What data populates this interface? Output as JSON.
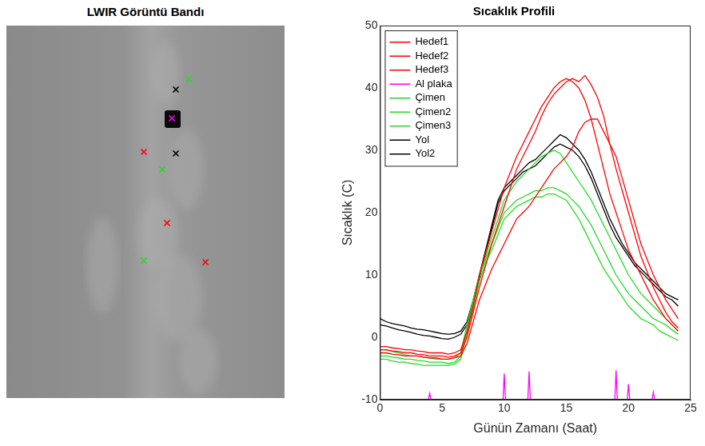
{
  "image_panel": {
    "title": "LWIR Görüntü Bandı"
  },
  "chart_data": {
    "type": "line",
    "title": "Sıcaklık Profili",
    "x_label": "Günün Zamanı (Saat)",
    "y_label": "Sıcaklık (C)",
    "xlim": [
      0,
      25
    ],
    "xticks": [
      0,
      5,
      10,
      15,
      20,
      25
    ],
    "ylim": [
      -10,
      50
    ],
    "yticks": [
      -10,
      0,
      10,
      20,
      30,
      40,
      50
    ],
    "grid": false,
    "legend": "upper left",
    "x": [
      0,
      0.5,
      1,
      1.5,
      2,
      2.5,
      3,
      3.5,
      4,
      4.5,
      5,
      5.5,
      6,
      6.5,
      7,
      7.5,
      8,
      8.5,
      9,
      9.5,
      10,
      10.5,
      11,
      11.5,
      12,
      12.5,
      13,
      13.5,
      14,
      14.5,
      15,
      15.5,
      16,
      16.5,
      17,
      17.5,
      18,
      18.5,
      19,
      19.5,
      20,
      20.5,
      21,
      21.5,
      22,
      22.5,
      23,
      23.5,
      24
    ],
    "series": [
      {
        "name": "Hedef1",
        "color": "#ff0000",
        "values": [
          -2,
          -2,
          -2.2,
          -2.3,
          -2.5,
          -2.5,
          -2.7,
          -2.8,
          -3,
          -3,
          -3,
          -3.2,
          -3,
          -2.5,
          0,
          4,
          8,
          11.5,
          15,
          18,
          21,
          24,
          27,
          29,
          31,
          33,
          35.5,
          37.5,
          39,
          40,
          41,
          41.5,
          41,
          42,
          40.5,
          38.5,
          35.5,
          31,
          27,
          23.5,
          20,
          16.5,
          13,
          10.5,
          8,
          6,
          4,
          2.5,
          1.5
        ]
      },
      {
        "name": "Hedef2",
        "color": "#ff0000",
        "values": [
          -1.5,
          -1.5,
          -1.7,
          -1.8,
          -2,
          -2,
          -2.2,
          -2.3,
          -2.5,
          -2.5,
          -2.5,
          -2.7,
          -2.5,
          -2,
          1,
          5,
          10,
          13.5,
          17,
          20.5,
          24,
          26.5,
          29,
          31,
          33,
          35,
          37,
          38.5,
          40,
          41,
          41.5,
          41,
          40,
          38,
          35,
          31,
          27,
          23,
          20,
          17,
          14,
          12,
          10,
          8,
          6,
          4.5,
          3,
          2,
          1
        ]
      },
      {
        "name": "Hedef3",
        "color": "#ff0000",
        "values": [
          -2.5,
          -2.5,
          -2.7,
          -2.8,
          -3,
          -3,
          -3,
          -3.2,
          -3.3,
          -3.3,
          -3.5,
          -3.5,
          -3.3,
          -3,
          -1,
          2.5,
          6,
          8.5,
          11,
          13,
          15,
          17,
          19,
          20,
          21,
          22.5,
          24,
          25.5,
          27,
          28,
          29,
          30.5,
          33,
          34.5,
          35,
          35,
          33,
          31,
          29,
          25.5,
          22,
          18.5,
          15,
          12.5,
          10,
          8,
          6,
          4.5,
          3
        ]
      },
      {
        "name": "Al plaka",
        "color": "#ff00ff",
        "x": [
          0,
          3.9,
          4,
          4.1,
          9.9,
          10,
          10.1,
          11.9,
          12,
          12.1,
          18.9,
          19,
          19.1,
          19.9,
          20,
          20.1,
          21.9,
          22,
          22.1,
          24
        ],
        "values": [
          -10,
          -10,
          -9,
          -10,
          -10,
          -5.8,
          -10,
          -10,
          -5.5,
          -10,
          -10,
          -5.3,
          -10,
          -10,
          -7.5,
          -10,
          -10,
          -8.8,
          -10,
          -10
        ]
      },
      {
        "name": "Çimen",
        "color": "#22dd22",
        "values": [
          -2,
          -2,
          -2.3,
          -2.5,
          -2.8,
          -3,
          -3,
          -3.2,
          -3.3,
          -3.5,
          -3.5,
          -3.5,
          -3.3,
          -2.5,
          2,
          6,
          10,
          13,
          16,
          19,
          22,
          23.5,
          25,
          26,
          27,
          28,
          29,
          29.5,
          30,
          29.5,
          28,
          26.5,
          25,
          23.5,
          22,
          20,
          18,
          16,
          14,
          12,
          10,
          8.5,
          7,
          6,
          5,
          4,
          3,
          2,
          1
        ]
      },
      {
        "name": "Çimen2",
        "color": "#22dd22",
        "values": [
          -3,
          -3,
          -3.2,
          -3.3,
          -3.5,
          -3.5,
          -3.7,
          -3.8,
          -4,
          -4,
          -4,
          -4.2,
          -4,
          -3,
          1,
          5.5,
          10,
          12.5,
          15,
          17.5,
          20,
          21,
          22,
          22.5,
          23,
          23.5,
          23.5,
          24,
          24,
          23.5,
          23,
          22,
          21,
          19.5,
          18,
          16,
          14,
          12,
          10,
          8.5,
          7,
          6,
          5,
          4,
          3,
          2.5,
          2,
          1.2,
          0.5
        ]
      },
      {
        "name": "Çimen3",
        "color": "#22dd22",
        "values": [
          -3.5,
          -3.5,
          -3.8,
          -4,
          -4,
          -4.2,
          -4.3,
          -4.5,
          -4.5,
          -4.5,
          -4.5,
          -4.5,
          -4.3,
          -3.5,
          0.5,
          4.5,
          9,
          12,
          14,
          16.5,
          19,
          20,
          21,
          21.5,
          22,
          22.5,
          22.5,
          23,
          23,
          22.5,
          22,
          20.5,
          19,
          17,
          15,
          13,
          11,
          9.5,
          8,
          6.5,
          5,
          4,
          3,
          2.5,
          2,
          1,
          0.5,
          0,
          -0.5
        ]
      },
      {
        "name": "Yol",
        "color": "#000000",
        "values": [
          3,
          2.5,
          2.2,
          2,
          1.8,
          1.5,
          1.3,
          1.2,
          1,
          0.8,
          0.6,
          0.5,
          0.6,
          1,
          2.5,
          6,
          10,
          14,
          18,
          22,
          24,
          25,
          26,
          27,
          28,
          28.5,
          29.5,
          30.5,
          31.5,
          32.5,
          32,
          31,
          30,
          28.5,
          26.5,
          24,
          21.5,
          19,
          17,
          15,
          13.5,
          12,
          11,
          10,
          9,
          8,
          7,
          6.5,
          6
        ]
      },
      {
        "name": "Yol2",
        "color": "#000000",
        "values": [
          2,
          1.8,
          1.5,
          1.2,
          1,
          0.8,
          0.5,
          0.3,
          0.2,
          0,
          -0.2,
          -0.3,
          0,
          0.5,
          2,
          5.5,
          9.5,
          13.5,
          17.5,
          21.5,
          23.5,
          24.5,
          25.5,
          26.5,
          27,
          27.5,
          28.5,
          29.5,
          30.5,
          31,
          30.5,
          30,
          29,
          27.5,
          25.5,
          23,
          20.5,
          18,
          16,
          14.5,
          13,
          11.5,
          10.5,
          9.5,
          8.5,
          7.5,
          6.5,
          6,
          5
        ]
      }
    ]
  }
}
